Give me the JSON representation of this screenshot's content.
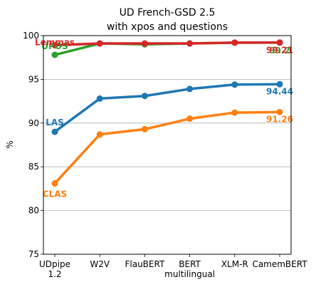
{
  "chart_data": {
    "type": "line",
    "title": "UD French-GSD 2.5",
    "subtitle": "with xpos and questions",
    "ylabel": "%",
    "xlabel": "",
    "ylim": [
      75,
      100
    ],
    "yticks": [
      "75",
      "80",
      "85",
      "90",
      "95",
      "100"
    ],
    "categories": [
      {
        "line1": "UDpipe",
        "line2": "1.2"
      },
      {
        "line1": "W2V",
        "line2": ""
      },
      {
        "line1": "FlauBERT",
        "line2": ""
      },
      {
        "line1": "BERT",
        "line2": "multilingual"
      },
      {
        "line1": "XLM-R",
        "line2": ""
      },
      {
        "line1": "CamemBERT",
        "line2": ""
      }
    ],
    "grid": "horizontal",
    "series": [
      {
        "name": "CLAS",
        "color": "#ff7f0e",
        "values": [
          83.1,
          88.7,
          89.3,
          90.5,
          91.2,
          91.26
        ],
        "end_label": "91.26"
      },
      {
        "name": "LAS",
        "color": "#1f77b4",
        "values": [
          89.0,
          92.8,
          93.1,
          93.9,
          94.4,
          94.44
        ],
        "end_label": "94.44"
      },
      {
        "name": "UPOS",
        "color": "#2ca02c",
        "values": [
          97.8,
          99.1,
          99.0,
          99.1,
          99.2,
          99.2
        ],
        "end_label": "99.2"
      },
      {
        "name": "Lemmas",
        "color": "#d62728",
        "values": [
          98.9,
          99.1,
          99.1,
          99.1,
          99.2,
          99.21
        ],
        "end_label": "99.21"
      }
    ]
  }
}
